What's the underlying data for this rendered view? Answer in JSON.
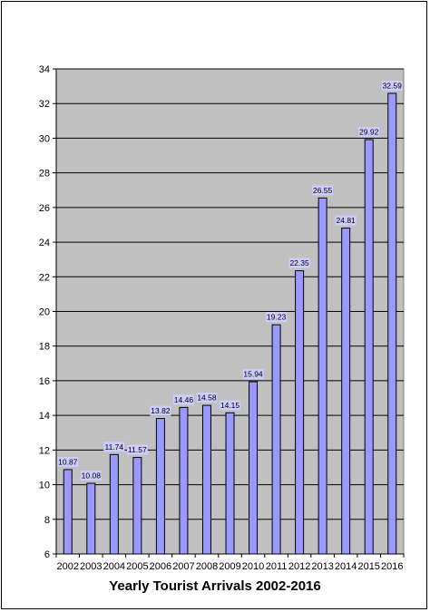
{
  "chart_data": {
    "type": "bar",
    "title": "Yearly Tourist Arrivals 2002-2016",
    "xlabel": "",
    "ylabel": "",
    "categories": [
      "2002",
      "2003",
      "2004",
      "2005",
      "2006",
      "2007",
      "2008",
      "2009",
      "2010",
      "2011",
      "2012",
      "2013",
      "2014",
      "2015",
      "2016"
    ],
    "values": [
      10.87,
      10.08,
      11.74,
      11.57,
      13.82,
      14.46,
      14.58,
      14.15,
      15.94,
      19.23,
      22.35,
      26.55,
      24.81,
      29.92,
      32.59
    ],
    "data_labels": [
      "10.87",
      "10.08",
      "11.74",
      "11.57",
      "13.82",
      "14.46",
      "14.58",
      "14.15",
      "15.94",
      "19.23",
      "22.35",
      "26.55",
      "24.81",
      "29.92",
      "32.59"
    ],
    "ylim": [
      6,
      34
    ],
    "yticks": [
      6,
      8,
      10,
      12,
      14,
      16,
      18,
      20,
      22,
      24,
      26,
      28,
      30,
      32,
      34
    ],
    "grid": true,
    "legend": "none",
    "colors": {
      "plot_background": "#c0c0c0",
      "bar_fill": "#9999ff",
      "bar_stroke": "#000000",
      "label_background": "#ccccff",
      "gridline": "#000000"
    }
  }
}
